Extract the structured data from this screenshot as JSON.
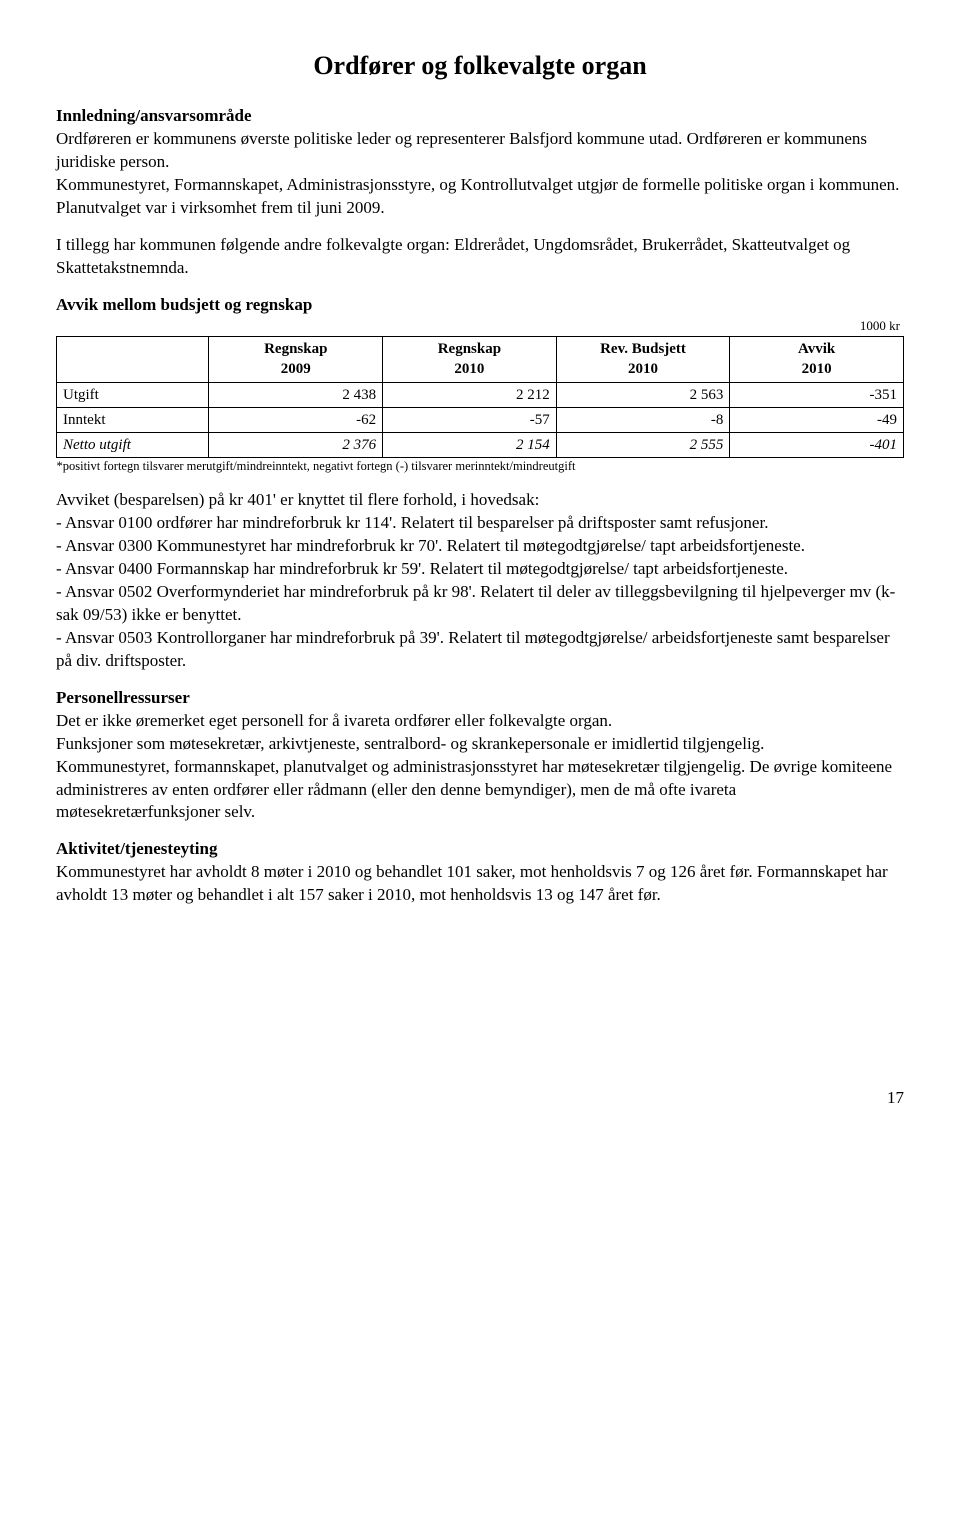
{
  "title": "Ordfører og folkevalgte organ",
  "section1": {
    "heading": "Innledning/ansvarsområde",
    "p1": "Ordføreren er kommunens øverste politiske leder og representerer Balsfjord kommune utad. Ordføreren er kommunens juridiske person.",
    "p2": "Kommunestyret, Formannskapet, Administrasjonsstyre, og Kontrollutvalget utgjør de formelle politiske organ i kommunen. Planutvalget var i virksomhet frem til juni 2009.",
    "p3": "I tillegg har kommunen følgende andre folkevalgte organ: Eldrerådet, Ungdomsrådet, Brukerrådet, Skatteutvalget og Skattetakstnemnda."
  },
  "section2": {
    "heading": "Avvik mellom budsjett og regnskap",
    "unit_note": "1000 kr",
    "columns": [
      "",
      "Regnskap\n2009",
      "Regnskap\n2010",
      "Rev. Budsjett\n2010",
      "Avvik\n2010"
    ],
    "rows": [
      {
        "label": "Utgift",
        "c1": "2 438",
        "c2": "2 212",
        "c3": "2 563",
        "c4": "-351"
      },
      {
        "label": "Inntekt",
        "c1": "-62",
        "c2": "-57",
        "c3": "-8",
        "c4": "-49"
      },
      {
        "label": "Netto utgift",
        "c1": "2 376",
        "c2": "2 154",
        "c3": "2 555",
        "c4": "-401"
      }
    ],
    "footnote": "*positivt fortegn tilsvarer merutgift/mindreinntekt, negativt fortegn (-) tilsvarer merinntekt/mindreutgift"
  },
  "section3": {
    "intro": "Avviket (besparelsen) på kr 401' er knyttet til flere forhold, i hovedsak:",
    "items": [
      "- Ansvar 0100 ordfører har mindreforbruk kr 114'. Relatert til besparelser på driftsposter samt refusjoner.",
      "- Ansvar 0300 Kommunestyret har mindreforbruk kr 70'. Relatert til møtegodtgjørelse/ tapt arbeidsfortjeneste.",
      "- Ansvar 0400 Formannskap har mindreforbruk kr 59'. Relatert til møtegodtgjørelse/ tapt arbeidsfortjeneste.",
      "- Ansvar 0502 Overformynderiet har mindreforbruk på kr 98'. Relatert til deler av tilleggsbevilgning til hjelpeverger mv (k-sak 09/53) ikke er benyttet.",
      "- Ansvar 0503 Kontrollorganer har mindreforbruk på 39'. Relatert til møtegodtgjørelse/ arbeidsfortjeneste samt besparelser på div. driftsposter."
    ]
  },
  "section4": {
    "heading": "Personellressurser",
    "p1": "Det er ikke øremerket eget personell for å ivareta ordfører eller folkevalgte organ.",
    "p2": "Funksjoner som møtesekretær, arkivtjeneste, sentralbord- og skrankepersonale er imidlertid tilgjengelig.",
    "p3": "Kommunestyret, formannskapet, planutvalget og administrasjonsstyret har møtesekretær tilgjengelig. De øvrige komiteene administreres av enten ordfører eller rådmann (eller den denne bemyndiger), men de må ofte ivareta møtesekretærfunksjoner selv."
  },
  "section5": {
    "heading": "Aktivitet/tjenesteyting",
    "p1": "Kommunestyret har avholdt 8 møter i 2010 og behandlet 101 saker, mot henholdsvis 7 og 126 året før. Formannskapet har avholdt 13 møter og behandlet i alt 157 saker i 2010, mot henholdsvis 13 og 147 året før."
  },
  "page_number": "17"
}
